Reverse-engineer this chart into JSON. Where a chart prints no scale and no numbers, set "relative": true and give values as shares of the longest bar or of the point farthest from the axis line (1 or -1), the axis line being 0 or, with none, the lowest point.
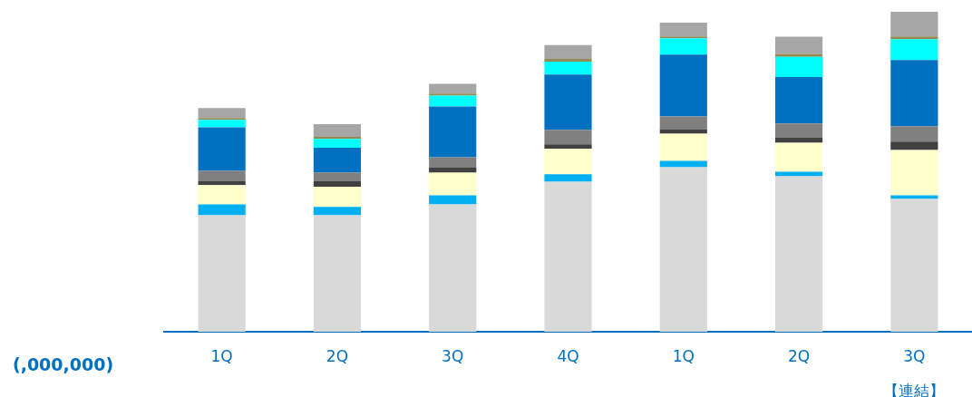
{
  "chart_data": {
    "type": "bar",
    "stacked": true,
    "relative": true,
    "legend": false,
    "grid": false,
    "categories": [
      "1Q",
      "2Q",
      "3Q",
      "4Q",
      "1Q",
      "2Q",
      "3Q\n【連結】"
    ],
    "series": [
      {
        "color": "#d9d9d9",
        "values": [
          0.364,
          0.364,
          0.398,
          0.469,
          0.514,
          0.486,
          0.415
        ]
      },
      {
        "color": "#00b0f0",
        "values": [
          0.034,
          0.026,
          0.028,
          0.023,
          0.02,
          0.014,
          0.011
        ]
      },
      {
        "color": "#ffffcc",
        "values": [
          0.06,
          0.063,
          0.071,
          0.08,
          0.085,
          0.091,
          0.142
        ]
      },
      {
        "color": "#404040",
        "values": [
          0.014,
          0.017,
          0.017,
          0.014,
          0.014,
          0.017,
          0.026
        ]
      },
      {
        "color": "#808080",
        "values": [
          0.031,
          0.028,
          0.031,
          0.045,
          0.04,
          0.043,
          0.048
        ]
      },
      {
        "color": "#0070c0",
        "values": [
          0.136,
          0.077,
          0.159,
          0.173,
          0.193,
          0.145,
          0.207
        ]
      },
      {
        "color": "#00ffff",
        "values": [
          0.023,
          0.028,
          0.034,
          0.04,
          0.051,
          0.063,
          0.065
        ]
      },
      {
        "color": "#948a54",
        "values": [
          0.006,
          0.006,
          0.006,
          0.009,
          0.006,
          0.009,
          0.009
        ]
      },
      {
        "color": "#a6a6a6",
        "values": [
          0.031,
          0.04,
          0.031,
          0.043,
          0.043,
          0.054,
          0.077
        ]
      }
    ],
    "annotations": [
      "(,000,000)"
    ]
  }
}
